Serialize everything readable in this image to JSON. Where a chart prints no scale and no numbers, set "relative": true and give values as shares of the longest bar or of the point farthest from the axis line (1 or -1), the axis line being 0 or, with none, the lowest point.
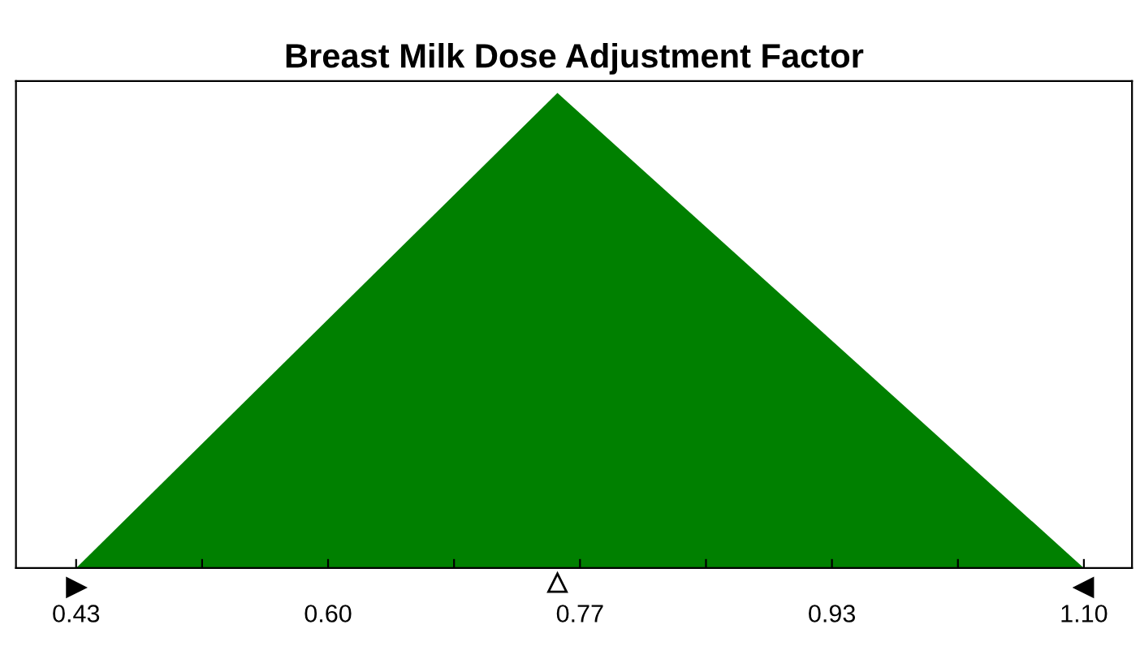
{
  "chart_data": {
    "type": "area",
    "title": "Breast Milk Dose Adjustment Factor",
    "x": [
      0.43,
      0.75,
      1.1
    ],
    "series": [
      {
        "color": "#008000",
        "values": [
          0,
          1,
          0
        ]
      }
    ],
    "relative": true,
    "xlim": [
      0.39,
      1.132
    ],
    "xticks": [
      {
        "value": 0.43,
        "label": "0.43"
      },
      {
        "value": 0.51375,
        "label": null
      },
      {
        "value": 0.5975,
        "label": "0.60"
      },
      {
        "value": 0.68125,
        "label": null
      },
      {
        "value": 0.765,
        "label": "0.77"
      },
      {
        "value": 0.84875,
        "label": null
      },
      {
        "value": 0.9325,
        "label": "0.93"
      },
      {
        "value": 1.01625,
        "label": null
      },
      {
        "value": 1.1,
        "label": "1.10"
      }
    ],
    "tick_labels": "x",
    "grid": false,
    "legend": false
  }
}
